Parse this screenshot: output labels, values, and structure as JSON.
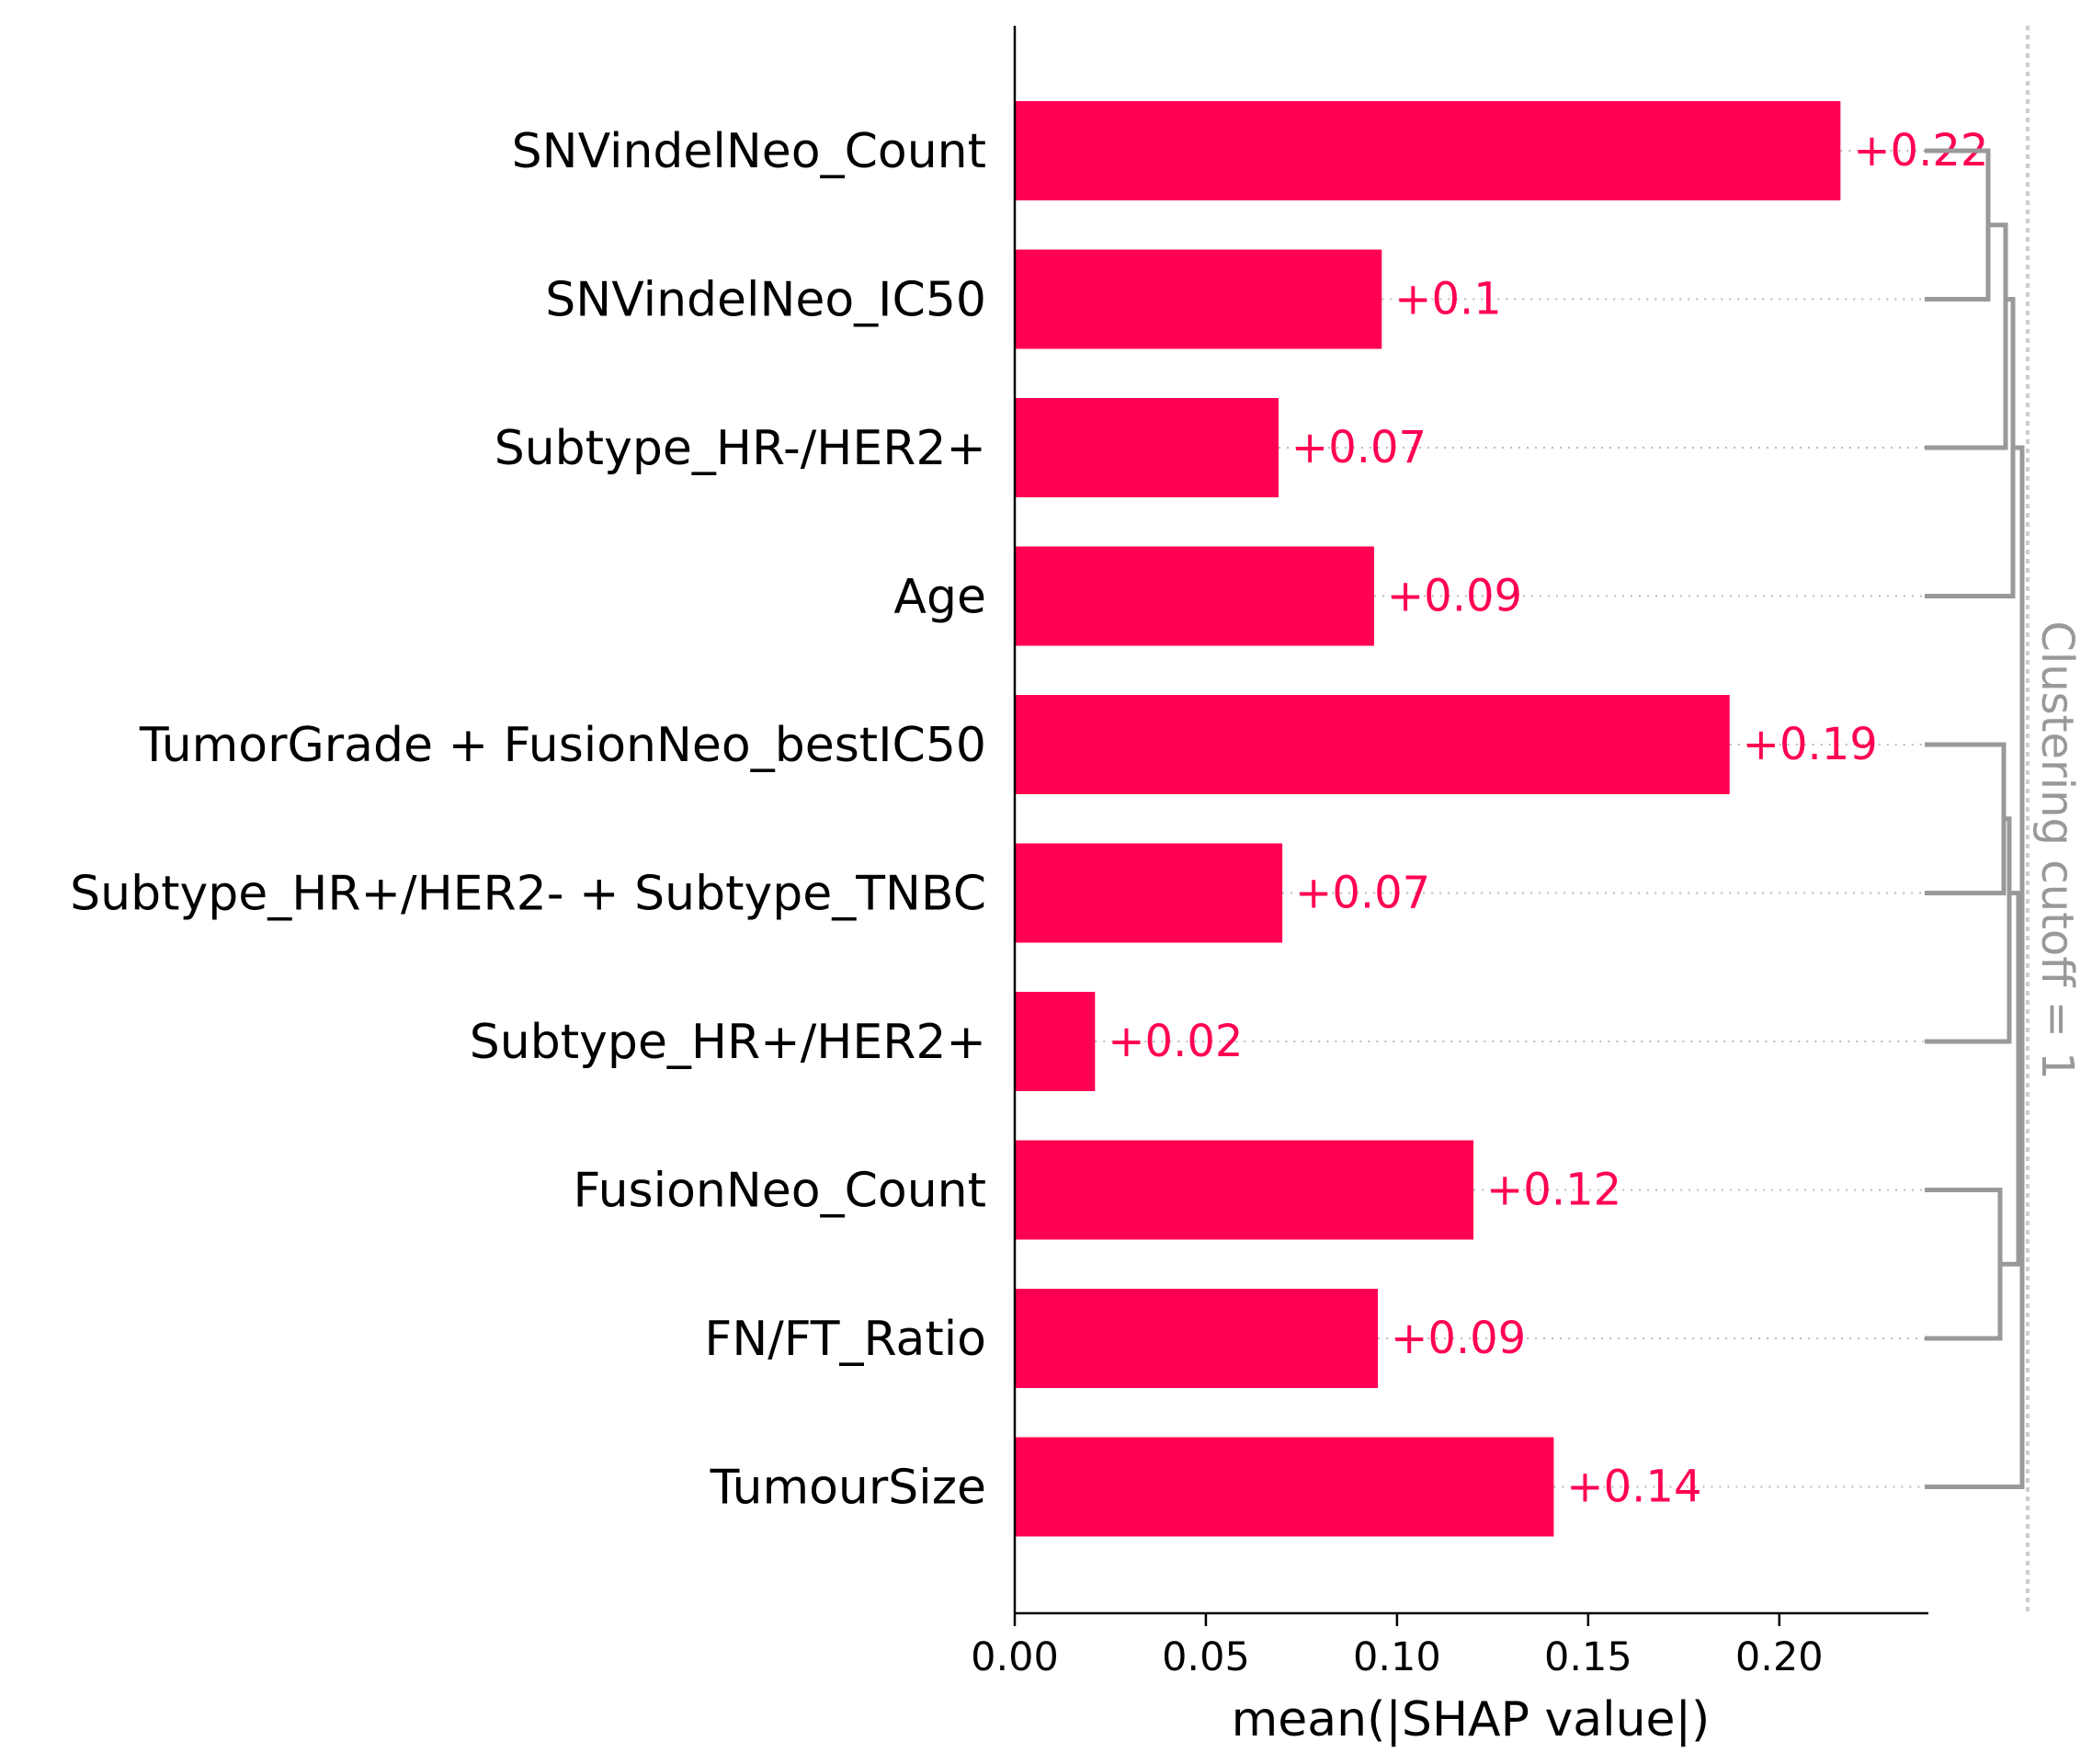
{
  "chart_data": {
    "type": "bar",
    "orientation": "horizontal",
    "categories": [
      "SNVindelNeo_Count",
      "SNVindelNeo_IC50",
      "Subtype_HR-/HER2+",
      "Age",
      "TumorGrade + FusionNeo_bestIC50",
      "Subtype_HR+/HER2- + Subtype_TNBC",
      "Subtype_HR+/HER2+",
      "FusionNeo_Count",
      "FN/FT_Ratio",
      "TumourSize"
    ],
    "values": [
      0.216,
      0.096,
      0.069,
      0.094,
      0.187,
      0.07,
      0.021,
      0.12,
      0.095,
      0.141
    ],
    "value_labels": [
      "+0.22",
      "+0.1",
      "+0.07",
      "+0.09",
      "+0.19",
      "+0.07",
      "+0.02",
      "+0.12",
      "+0.09",
      "+0.14"
    ],
    "xlabel": "mean(|SHAP value|)",
    "ylabel": "",
    "xlim": [
      0,
      0.239
    ],
    "xticks": [
      "0.00",
      "0.05",
      "0.10",
      "0.15",
      "0.20"
    ],
    "xtick_values": [
      0,
      0.05,
      0.1,
      0.15,
      0.2
    ],
    "grid": false,
    "bar_color": "#ff0052",
    "label_color": "#ff0052",
    "dendrogram": {
      "label": "Clustering cutoff = 1",
      "line_color": "#999999",
      "cutoff_color": "#cccccc"
    }
  }
}
